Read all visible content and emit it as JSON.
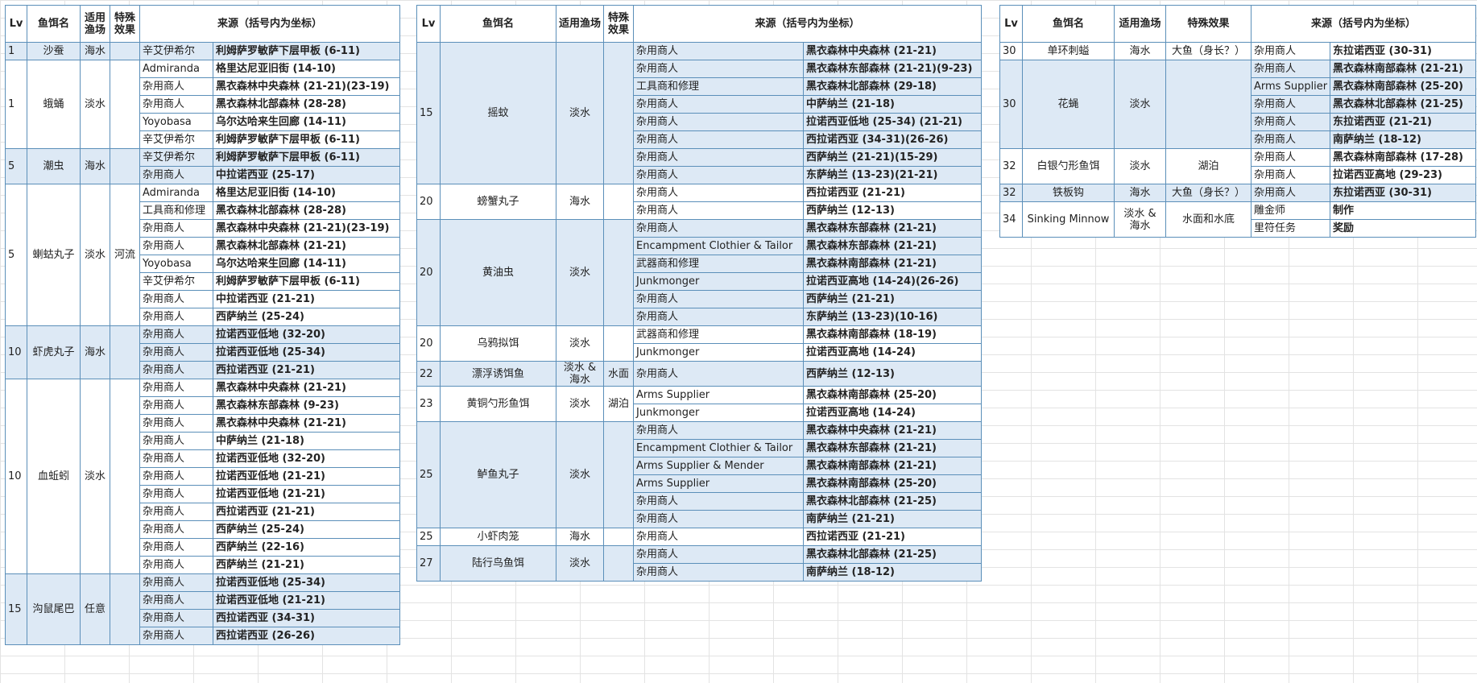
{
  "headers": [
    "Lv",
    "鱼饵名",
    "适用渔场",
    "特殊效果",
    "来源（括号内为坐标）"
  ],
  "tables": [
    {
      "groups": [
        {
          "lv": 1,
          "name": "沙蚕",
          "water": "海水",
          "sources": [
            [
              "辛艾伊希尔",
              "利姆萨罗敏萨下层甲板 (6-11)"
            ]
          ]
        },
        {
          "lv": 1,
          "name": "蛾蛹",
          "water": "淡水",
          "sources": [
            [
              "Admiranda",
              "格里达尼亚旧街 (14-10)"
            ],
            [
              "杂用商人",
              "黑衣森林中央森林 (21-21)(23-19)"
            ],
            [
              "杂用商人",
              "黑衣森林北部森林 (28-28)"
            ],
            [
              "Yoyobasa",
              "乌尔达哈来生回廊 (14-11)"
            ],
            [
              "辛艾伊希尔",
              "利姆萨罗敏萨下层甲板 (6-11)"
            ]
          ]
        },
        {
          "lv": 5,
          "name": "潮虫",
          "water": "海水",
          "sources": [
            [
              "辛艾伊希尔",
              "利姆萨罗敏萨下层甲板 (6-11)"
            ],
            [
              "杂用商人",
              "中拉诺西亚 (25-17)"
            ]
          ]
        },
        {
          "lv": 5,
          "name": "蝲蛄丸子",
          "water": "淡水",
          "effect": "河流",
          "sources": [
            [
              "Admiranda",
              "格里达尼亚旧街 (14-10)"
            ],
            [
              "工具商和修理",
              "黑衣森林北部森林 (28-28)"
            ],
            [
              "杂用商人",
              "黑衣森林中央森林 (21-21)(23-19)"
            ],
            [
              "杂用商人",
              "黑衣森林北部森林 (21-21)"
            ],
            [
              "Yoyobasa",
              "乌尔达哈来生回廊 (14-11)"
            ],
            [
              "辛艾伊希尔",
              "利姆萨罗敏萨下层甲板 (6-11)"
            ],
            [
              "杂用商人",
              "中拉诺西亚 (21-21)"
            ],
            [
              "杂用商人",
              "西萨纳兰 (25-24)"
            ]
          ]
        },
        {
          "lv": 10,
          "name": "虾虎丸子",
          "water": "海水",
          "sources": [
            [
              "杂用商人",
              "拉诺西亚低地 (32-20)"
            ],
            [
              "杂用商人",
              "拉诺西亚低地 (25-34)"
            ],
            [
              "杂用商人",
              "西拉诺西亚 (21-21)"
            ]
          ]
        },
        {
          "lv": 10,
          "name": "血蚯蚓",
          "water": "淡水",
          "sources": [
            [
              "杂用商人",
              "黑衣森林中央森林 (21-21)"
            ],
            [
              "杂用商人",
              "黑衣森林东部森林 (9-23)"
            ],
            [
              "杂用商人",
              "黑衣森林中央森林 (21-21)"
            ],
            [
              "杂用商人",
              "中萨纳兰 (21-18)"
            ],
            [
              "杂用商人",
              "拉诺西亚低地 (32-20)"
            ],
            [
              "杂用商人",
              "拉诺西亚低地 (21-21)"
            ],
            [
              "杂用商人",
              "拉诺西亚低地 (21-21)"
            ],
            [
              "杂用商人",
              "西拉诺西亚 (21-21)"
            ],
            [
              "杂用商人",
              "西萨纳兰 (25-24)"
            ],
            [
              "杂用商人",
              "西萨纳兰 (22-16)"
            ],
            [
              "杂用商人",
              "西萨纳兰 (21-21)"
            ]
          ]
        },
        {
          "lv": 15,
          "name": "沟鼠尾巴",
          "water": "任意",
          "sources": [
            [
              "杂用商人",
              "拉诺西亚低地 (25-34)"
            ],
            [
              "杂用商人",
              "拉诺西亚低地 (21-21)"
            ],
            [
              "杂用商人",
              "西拉诺西亚 (34-31)"
            ],
            [
              "杂用商人",
              "西拉诺西亚 (26-26)"
            ]
          ]
        }
      ]
    },
    {
      "groups": [
        {
          "lv": 15,
          "name": "摇蚊",
          "water": "淡水",
          "sources": [
            [
              "杂用商人",
              "黑衣森林中央森林 (21-21)"
            ],
            [
              "杂用商人",
              "黑衣森林东部森林 (21-21)(9-23)"
            ],
            [
              "工具商和修理",
              "黑衣森林北部森林 (29-18)"
            ],
            [
              "杂用商人",
              "中萨纳兰 (21-18)"
            ],
            [
              "杂用商人",
              "拉诺西亚低地 (25-34) (21-21)"
            ],
            [
              "杂用商人",
              "西拉诺西亚 (34-31)(26-26)"
            ],
            [
              "杂用商人",
              "西萨纳兰 (21-21)(15-29)"
            ],
            [
              "杂用商人",
              "东萨纳兰 (13-23)(21-21)"
            ]
          ]
        },
        {
          "lv": 20,
          "name": "螃蟹丸子",
          "water": "海水",
          "sources": [
            [
              "杂用商人",
              "西拉诺西亚 (21-21)"
            ],
            [
              "杂用商人",
              "西萨纳兰 (12-13)"
            ]
          ]
        },
        {
          "lv": 20,
          "name": "黄油虫",
          "water": "淡水",
          "sources": [
            [
              "杂用商人",
              "黑衣森林东部森林 (21-21)"
            ],
            [
              "Encampment Clothier & Tailor",
              "黑衣森林东部森林 (21-21)"
            ],
            [
              "武器商和修理",
              "黑衣森林南部森林 (21-21)"
            ],
            [
              "Junkmonger",
              "拉诺西亚高地 (14-24)(26-26)"
            ],
            [
              "杂用商人",
              "西萨纳兰 (21-21)"
            ],
            [
              "杂用商人",
              "东萨纳兰 (13-23)(10-16)"
            ]
          ]
        },
        {
          "lv": 20,
          "name": "乌鸦拟饵",
          "water": "淡水",
          "sources": [
            [
              "武器商和修理",
              "黑衣森林南部森林 (18-19)"
            ],
            [
              "Junkmonger",
              "拉诺西亚高地 (14-24)"
            ]
          ]
        },
        {
          "lv": 22,
          "name": "漂浮诱饵鱼",
          "water": "淡水 & 海水",
          "effect": "水面",
          "sources": [
            [
              "杂用商人",
              "西萨纳兰 (12-13)"
            ]
          ]
        },
        {
          "lv": 23,
          "name": "黄铜勺形鱼饵",
          "water": "淡水",
          "effect": "湖泊",
          "sources": [
            [
              "Arms Supplier",
              "黑衣森林南部森林 (25-20)"
            ],
            [
              "Junkmonger",
              "拉诺西亚高地 (14-24)"
            ]
          ]
        },
        {
          "lv": 25,
          "name": "鲈鱼丸子",
          "water": "淡水",
          "sources": [
            [
              "杂用商人",
              "黑衣森林中央森林 (21-21)"
            ],
            [
              "Encampment Clothier & Tailor",
              "黑衣森林东部森林 (21-21)"
            ],
            [
              "Arms Supplier & Mender",
              "黑衣森林南部森林 (21-21)"
            ],
            [
              "Arms Supplier",
              "黑衣森林南部森林 (25-20)"
            ],
            [
              "杂用商人",
              "黑衣森林北部森林 (21-25)"
            ],
            [
              "杂用商人",
              "南萨纳兰 (21-21)"
            ]
          ]
        },
        {
          "lv": 25,
          "name": "小虾肉笼",
          "water": "海水",
          "sources": [
            [
              "杂用商人",
              "西拉诺西亚 (21-21)"
            ]
          ]
        },
        {
          "lv": 27,
          "name": "陆行鸟鱼饵",
          "water": "淡水",
          "sources": [
            [
              "杂用商人",
              "黑衣森林北部森林 (21-25)"
            ],
            [
              "杂用商人",
              "南萨纳兰 (18-12)"
            ]
          ]
        }
      ]
    },
    {
      "groups": [
        {
          "lv": 30,
          "name": "单环刺螠",
          "water": "海水",
          "effect": "大鱼（身长？）",
          "sources": [
            [
              "杂用商人",
              "东拉诺西亚 (30-31)"
            ]
          ]
        },
        {
          "lv": 30,
          "name": "花蝇",
          "water": "淡水",
          "sources": [
            [
              "杂用商人",
              "黑衣森林南部森林 (21-21)"
            ],
            [
              "Arms Supplier",
              "黑衣森林南部森林 (25-20)"
            ],
            [
              "杂用商人",
              "黑衣森林北部森林 (21-25)"
            ],
            [
              "杂用商人",
              "东拉诺西亚 (21-21)"
            ],
            [
              "杂用商人",
              "南萨纳兰 (18-12)"
            ]
          ]
        },
        {
          "lv": 32,
          "name": "白银勺形鱼饵",
          "water": "淡水",
          "effect": "湖泊",
          "sources": [
            [
              "杂用商人",
              "黑衣森林南部森林 (17-28)"
            ],
            [
              "杂用商人",
              "拉诺西亚高地 (29-23)"
            ]
          ]
        },
        {
          "lv": 32,
          "name": "铁板钩",
          "water": "海水",
          "effect": "大鱼（身长？）",
          "sources": [
            [
              "杂用商人",
              "东拉诺西亚 (30-31)"
            ]
          ]
        },
        {
          "lv": 34,
          "name": "Sinking Minnow",
          "water": "淡水 & 海水",
          "effect": "水面和水底",
          "sources": [
            [
              "雕金师",
              "制作"
            ],
            [
              "里符任务",
              "奖励"
            ]
          ]
        }
      ]
    }
  ]
}
